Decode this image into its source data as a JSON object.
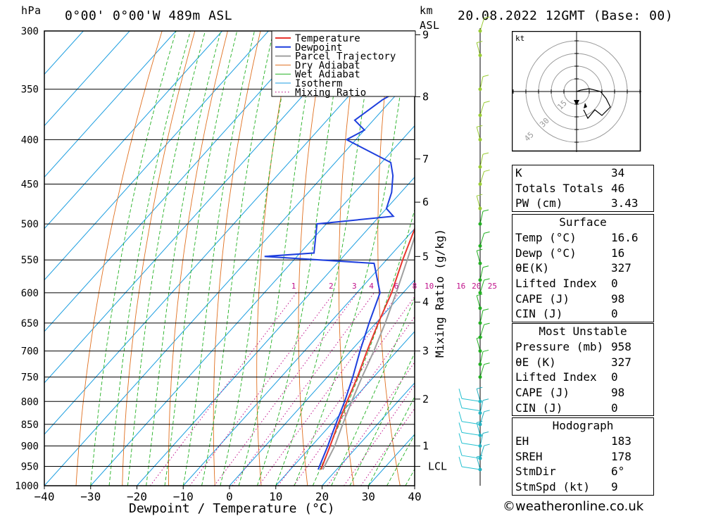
{
  "header": {
    "location": "0°00' 0°00'W 489m ASL",
    "datetime": "20.08.2022 12GMT (Base: 00)",
    "hpa_label": "hPa",
    "km_label": "km",
    "asl_label": "ASL"
  },
  "chart_data": {
    "type": "line",
    "title": "0°00' 0°00'W 489m ASL",
    "xlabel": "Dewpoint / Temperature (°C)",
    "ylabel": "hPa",
    "right_axis_label": "Mixing Ratio (g/kg)",
    "xlim": [
      -40,
      40
    ],
    "ylim": [
      1000,
      300
    ],
    "pressure_ticks": [
      300,
      350,
      400,
      450,
      500,
      550,
      600,
      650,
      700,
      750,
      800,
      850,
      900,
      950,
      1000
    ],
    "x_ticks": [
      "−40",
      "−30",
      "−20",
      "−10",
      "0",
      "10",
      "20",
      "30",
      "40"
    ],
    "km_ticks": [
      {
        "label": "9",
        "p": 303
      },
      {
        "label": "8",
        "p": 357
      },
      {
        "label": "7",
        "p": 421
      },
      {
        "label": "6",
        "p": 472
      },
      {
        "label": "5",
        "p": 545
      },
      {
        "label": "4",
        "p": 615
      },
      {
        "label": "3",
        "p": 700
      },
      {
        "label": "2",
        "p": 795
      },
      {
        "label": "1",
        "p": 900
      }
    ],
    "lcl": {
      "label": "LCL",
      "p": 950
    },
    "mixing_ratio_labels": [
      "1",
      "2",
      "3",
      "4",
      "6",
      "8",
      "10",
      "16",
      "20",
      "25"
    ],
    "legend": [
      "Temperature",
      "Dewpoint",
      "Parcel Trajectory",
      "Dry Adiabat",
      "Wet Adiabat",
      "Isotherm",
      "Mixing Ratio"
    ],
    "legend_position": "top-right",
    "series": [
      {
        "name": "Temperature",
        "color": "#e8352e",
        "points": [
          [
            958,
            16.6
          ],
          [
            900,
            14
          ],
          [
            850,
            11.5
          ],
          [
            800,
            9
          ],
          [
            750,
            6.5
          ],
          [
            700,
            3.5
          ],
          [
            650,
            0.5
          ],
          [
            600,
            -2.5
          ],
          [
            550,
            -6.5
          ],
          [
            500,
            -10.5
          ],
          [
            450,
            -16
          ],
          [
            400,
            -23
          ],
          [
            370,
            -27
          ],
          [
            350,
            -31
          ],
          [
            300,
            -40
          ]
        ]
      },
      {
        "name": "Dewpoint",
        "color": "#1e3fdd",
        "points": [
          [
            958,
            16
          ],
          [
            900,
            13.5
          ],
          [
            850,
            11
          ],
          [
            800,
            8.5
          ],
          [
            750,
            5.5
          ],
          [
            700,
            2
          ],
          [
            650,
            -1.5
          ],
          [
            600,
            -5
          ],
          [
            555,
            -12
          ],
          [
            545,
            -37
          ],
          [
            540,
            -27
          ],
          [
            500,
            -32
          ],
          [
            490,
            -17
          ],
          [
            480,
            -20
          ],
          [
            460,
            -22
          ],
          [
            440,
            -25
          ],
          [
            425,
            -28
          ],
          [
            400,
            -42
          ],
          [
            390,
            -40
          ],
          [
            380,
            -44
          ],
          [
            360,
            -42
          ],
          [
            340,
            -38
          ],
          [
            320,
            -44
          ],
          [
            300,
            -52
          ]
        ]
      },
      {
        "name": "Parcel Trajectory",
        "color": "#a0a0a0",
        "points": [
          [
            958,
            17
          ],
          [
            900,
            15
          ],
          [
            850,
            12.5
          ],
          [
            800,
            10
          ],
          [
            750,
            7.5
          ],
          [
            700,
            5
          ],
          [
            650,
            2
          ],
          [
            600,
            -1.5
          ],
          [
            550,
            -5.5
          ],
          [
            500,
            -10
          ],
          [
            450,
            -15.5
          ],
          [
            400,
            -22
          ],
          [
            350,
            -30
          ],
          [
            300,
            -39
          ]
        ]
      }
    ],
    "colors": {
      "temperature": "#e8352e",
      "dewpoint": "#1e3fdd",
      "parcel": "#a0a0a0",
      "dry_adiabat": "#e07020",
      "wet_adiabat": "#22b022",
      "isotherm": "#1c9ee0",
      "mixing_ratio": "#c0108a"
    },
    "hodograph": {
      "unit_label": "kt",
      "ring_labels": [
        "15",
        "30",
        "45"
      ]
    }
  },
  "indices": {
    "k": {
      "label": "K",
      "value": "34"
    },
    "tt": {
      "label": "Totals Totals",
      "value": "46"
    },
    "pw": {
      "label": "PW (cm)",
      "value": "3.43"
    }
  },
  "surface": {
    "title": "Surface",
    "temp": {
      "label": "Temp (°C)",
      "value": "16.6"
    },
    "dewp": {
      "label": "Dewp (°C)",
      "value": "16"
    },
    "theta": {
      "label": "θE(K)",
      "value": "327"
    },
    "li": {
      "label": "Lifted Index",
      "value": "0"
    },
    "cape": {
      "label": "CAPE (J)",
      "value": "98"
    },
    "cin": {
      "label": "CIN (J)",
      "value": "0"
    }
  },
  "most_unstable": {
    "title": "Most Unstable",
    "pressure": {
      "label": "Pressure (mb)",
      "value": "958"
    },
    "theta": {
      "label": "θE (K)",
      "value": "327"
    },
    "li": {
      "label": "Lifted Index",
      "value": "0"
    },
    "cape": {
      "label": "CAPE (J)",
      "value": "98"
    },
    "cin": {
      "label": "CIN (J)",
      "value": "0"
    }
  },
  "hodograph_table": {
    "title": "Hodograph",
    "eh": {
      "label": "EH",
      "value": "183"
    },
    "sreh": {
      "label": "SREH",
      "value": "178"
    },
    "stmdir": {
      "label": "StmDir",
      "value": "6°"
    },
    "stmspd": {
      "label": "StmSpd (kt)",
      "value": "9"
    }
  },
  "footer": {
    "credit": "©weatheronline.co.uk"
  }
}
